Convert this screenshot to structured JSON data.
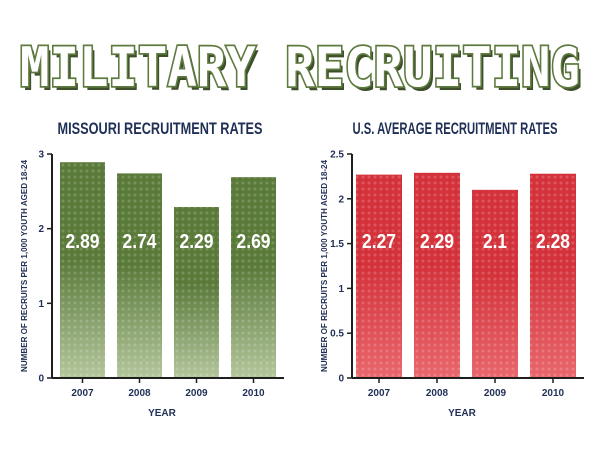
{
  "infographic": {
    "title": "MILITARY RECRUITING",
    "colors": {
      "title_fill": "#ffffff",
      "title_outline": "#5e7a3e",
      "title_shadow": "#3d4f2a",
      "chart_title": "#1f2f55",
      "axis": "#1e1e1e",
      "axis_text": "#1f2f55"
    }
  },
  "chart_data": [
    {
      "type": "bar",
      "title": "MISSOURI RECRUITMENT RATES",
      "xlabel": "YEAR",
      "ylabel": "NUMBER OF RECRUITS PER 1,000 YOUTH AGED 18-24",
      "categories": [
        "2007",
        "2008",
        "2009",
        "2010"
      ],
      "values": [
        2.89,
        2.74,
        2.29,
        2.69
      ],
      "value_labels": [
        "2.89",
        "2.74",
        "2.29",
        "2.69"
      ],
      "ylim": [
        0,
        3
      ],
      "yticks": [
        0,
        1,
        2,
        3
      ],
      "ytick_labels": [
        "0",
        "1",
        "2",
        "3"
      ],
      "bar_color": "#5a7a3a",
      "bar_color_light": "#b4c69c",
      "label_color": "#ffffff"
    },
    {
      "type": "bar",
      "title": "U.S. AVERAGE RECRUITMENT RATES",
      "xlabel": "YEAR",
      "ylabel": "NUMBER OF RECRUITS PER 1,000 YOUTH AGED 18-24",
      "categories": [
        "2007",
        "2008",
        "2009",
        "2010"
      ],
      "values": [
        2.27,
        2.29,
        2.1,
        2.28
      ],
      "value_labels": [
        "2.27",
        "2.29",
        "2.1",
        "2.28"
      ],
      "ylim": [
        0,
        2.5
      ],
      "yticks": [
        0,
        0.5,
        1,
        1.5,
        2,
        2.5
      ],
      "ytick_labels": [
        "0",
        "0.5",
        "1",
        "1.5",
        "2",
        "2.5"
      ],
      "bar_color": "#d4323a",
      "bar_color_light": "#e8676c",
      "label_color": "#ffffff"
    }
  ]
}
